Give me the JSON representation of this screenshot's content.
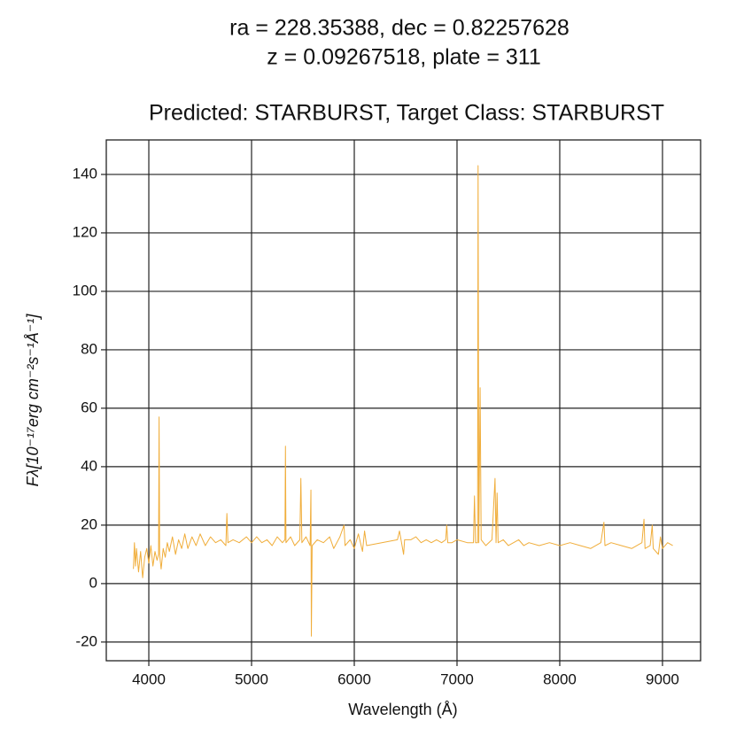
{
  "chart_data": {
    "type": "line",
    "title": [
      "ra = 228.35388, dec = 0.82257628",
      "z = 0.09267518, plate = 311"
    ],
    "subtitle": "Predicted: STARBURST, Target Class: STARBURST",
    "x_label": "Wavelength (Å)",
    "y_label": "Fλ[10⁻¹⁷erg cm⁻²s⁻¹Å⁻¹]",
    "xlim": [
      3586,
      9371
    ],
    "ylim": [
      -26.4,
      151.8
    ],
    "xticks": [
      4000,
      5000,
      6000,
      7000,
      8000,
      9000
    ],
    "yticks": [
      -20,
      0,
      20,
      40,
      60,
      80,
      100,
      120,
      140
    ],
    "grid": true,
    "x": [
      3850,
      3860,
      3870,
      3880,
      3900,
      3920,
      3940,
      3960,
      3980,
      4000,
      4020,
      4040,
      4060,
      4080,
      4095,
      4100,
      4105,
      4120,
      4140,
      4160,
      4180,
      4200,
      4230,
      4260,
      4290,
      4320,
      4350,
      4380,
      4420,
      4460,
      4500,
      4550,
      4600,
      4650,
      4700,
      4750,
      4760,
      4770,
      4820,
      4880,
      4950,
      5000,
      5050,
      5100,
      5150,
      5200,
      5250,
      5300,
      5325,
      5330,
      5335,
      5380,
      5420,
      5470,
      5480,
      5490,
      5530,
      5570,
      5578,
      5582,
      5590,
      5640,
      5700,
      5760,
      5800,
      5860,
      5900,
      5910,
      5960,
      6000,
      6040,
      6080,
      6100,
      6120,
      6420,
      6440,
      6460,
      6480,
      6490,
      6550,
      6600,
      6650,
      6700,
      6750,
      6800,
      6850,
      6890,
      6900,
      6910,
      6950,
      7000,
      7100,
      7160,
      7170,
      7180,
      7200,
      7205,
      7212,
      7225,
      7235,
      7280,
      7340,
      7370,
      7380,
      7390,
      7400,
      7450,
      7500,
      7550,
      7600,
      7650,
      7700,
      7800,
      7900,
      8000,
      8100,
      8200,
      8300,
      8400,
      8430,
      8440,
      8500,
      8600,
      8700,
      8800,
      8820,
      8830,
      8880,
      8900,
      8910,
      8960,
      8980,
      9000,
      9050,
      9100
    ],
    "series": [
      {
        "name": "flux",
        "color": "#f0ad3a",
        "values": [
          5,
          14,
          6,
          12,
          4,
          11,
          2,
          9,
          12,
          7,
          13,
          6,
          11,
          8,
          10,
          57,
          10,
          5,
          12,
          9,
          14,
          11,
          16,
          10,
          15,
          12,
          17,
          12,
          16,
          13,
          17,
          13,
          16,
          14,
          15,
          13,
          24,
          14,
          15,
          14,
          16,
          14,
          16,
          14,
          15,
          13,
          16,
          14,
          15,
          47,
          14,
          16,
          13,
          15,
          36,
          14,
          16,
          13,
          32,
          -18,
          13,
          15,
          14,
          16,
          12,
          16,
          20,
          13,
          15,
          12,
          17,
          11,
          18,
          13,
          15,
          18,
          14,
          10,
          15,
          15,
          16,
          14,
          15,
          14,
          15,
          14,
          15,
          20,
          14,
          14,
          15,
          14,
          14,
          30,
          14,
          14,
          143,
          14,
          67,
          15,
          13,
          15,
          36,
          14,
          31,
          14,
          15,
          13,
          14,
          15,
          13,
          14,
          13,
          14,
          13,
          14,
          13,
          12,
          14,
          21,
          13,
          14,
          13,
          12,
          14,
          22,
          12,
          13,
          20,
          12,
          10,
          16,
          12,
          14,
          13
        ]
      }
    ]
  }
}
